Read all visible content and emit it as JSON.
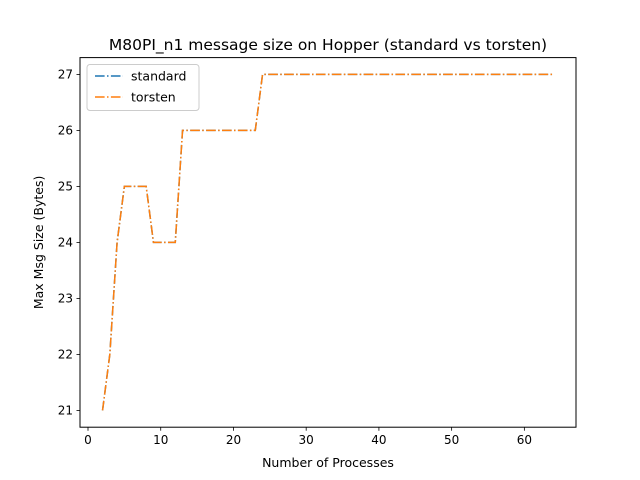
{
  "chart_data": {
    "type": "line",
    "title": "M80PI_n1 message size on Hopper (standard vs torsten)",
    "xlabel": "Number of Processes",
    "ylabel": "Max Msg Size (Bytes)",
    "xlim": [
      -1.1,
      67.1
    ],
    "ylim": [
      20.7,
      27.3
    ],
    "xticks": [
      0,
      10,
      20,
      30,
      40,
      50,
      60
    ],
    "yticks": [
      21,
      22,
      23,
      24,
      25,
      26,
      27
    ],
    "grid": false,
    "legend_position": "top-left",
    "x": [
      2,
      3,
      4,
      5,
      6,
      7,
      8,
      9,
      10,
      11,
      12,
      13,
      14,
      15,
      16,
      17,
      18,
      19,
      20,
      21,
      22,
      23,
      24,
      25,
      26,
      27,
      28,
      29,
      30,
      31,
      32,
      33,
      34,
      35,
      36,
      37,
      38,
      39,
      40,
      41,
      42,
      43,
      44,
      45,
      46,
      47,
      48,
      49,
      50,
      51,
      52,
      53,
      54,
      55,
      56,
      57,
      58,
      59,
      60,
      61,
      62,
      63,
      64
    ],
    "series": [
      {
        "name": "standard",
        "color": "#1f77b4",
        "linestyle": "dashdot",
        "values": [
          21,
          22,
          24,
          25,
          25,
          25,
          25,
          24,
          24,
          24,
          24,
          26,
          26,
          26,
          26,
          26,
          26,
          26,
          26,
          26,
          26,
          26,
          27,
          27,
          27,
          27,
          27,
          27,
          27,
          27,
          27,
          27,
          27,
          27,
          27,
          27,
          27,
          27,
          27,
          27,
          27,
          27,
          27,
          27,
          27,
          27,
          27,
          27,
          27,
          27,
          27,
          27,
          27,
          27,
          27,
          27,
          27,
          27,
          27,
          27,
          27,
          27,
          27
        ]
      },
      {
        "name": "torsten",
        "color": "#ff7f0e",
        "linestyle": "dashdot",
        "values": [
          21,
          22,
          24,
          25,
          25,
          25,
          25,
          24,
          24,
          24,
          24,
          26,
          26,
          26,
          26,
          26,
          26,
          26,
          26,
          26,
          26,
          26,
          27,
          27,
          27,
          27,
          27,
          27,
          27,
          27,
          27,
          27,
          27,
          27,
          27,
          27,
          27,
          27,
          27,
          27,
          27,
          27,
          27,
          27,
          27,
          27,
          27,
          27,
          27,
          27,
          27,
          27,
          27,
          27,
          27,
          27,
          27,
          27,
          27,
          27,
          27,
          27,
          27
        ]
      }
    ]
  }
}
